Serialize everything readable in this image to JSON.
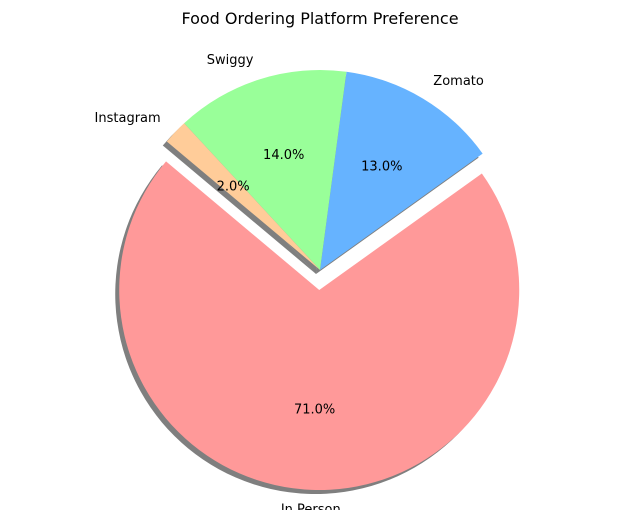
{
  "chart_data": {
    "type": "pie",
    "title": "Food Ordering Platform Preference",
    "slices": [
      {
        "label": "In Person",
        "value": 71.0,
        "pct_label": "71.0%",
        "color": "#ff9999",
        "exploded": true
      },
      {
        "label": "Zomato",
        "value": 13.0,
        "pct_label": "13.0%",
        "color": "#66b3ff",
        "exploded": false
      },
      {
        "label": "Swiggy",
        "value": 14.0,
        "pct_label": "14.0%",
        "color": "#99ff99",
        "exploded": false
      },
      {
        "label": "Instagram",
        "value": 2.0,
        "pct_label": "2.0%",
        "color": "#ffcc99",
        "exploded": false
      }
    ],
    "shadow": true,
    "legend": false
  }
}
